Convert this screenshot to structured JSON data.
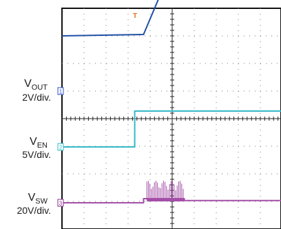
{
  "chart_data": {
    "type": "line",
    "title": "",
    "xlabel": "",
    "ylabel": "",
    "grid": true,
    "grid_divisions": {
      "x": 10,
      "y": 8
    },
    "trigger_marker": {
      "text": "T",
      "color": "#e8701a",
      "x_div": 3.6
    },
    "channels": [
      {
        "id": "1",
        "name": "V",
        "sub": "OUT",
        "scale": "2V/div.",
        "color": "#1f4fa6",
        "marker_color": "#2a50c8"
      },
      {
        "id": "2",
        "name": "V",
        "sub": "EN",
        "scale": "5V/div.",
        "color": "#34b8c8",
        "marker_color": "#34b8c8"
      },
      {
        "id": "3",
        "name": "V",
        "sub": "SW",
        "scale": "20V/div.",
        "color": "#a44fa8",
        "marker_color": "#8a2f8e"
      }
    ],
    "series": [
      {
        "channel": "1",
        "x_div": [
          0,
          3.7,
          5.1,
          5.6,
          10
        ],
        "y_div": [
          2.0,
          2.05,
          4.7,
          5.1,
          5.1
        ]
      },
      {
        "channel": "2",
        "x_div": [
          0,
          3.3,
          3.3,
          10
        ],
        "y_div": [
          0,
          0,
          1.3,
          1.3
        ]
      },
      {
        "channel": "3",
        "x_div": [
          0,
          3.7,
          3.7,
          5.55,
          5.55,
          10
        ],
        "y_div": [
          0,
          0,
          0.15,
          0.15,
          0.08,
          0.08
        ]
      }
    ],
    "burst": {
      "channel": "3",
      "x_div": [
        3.85,
        5.55
      ],
      "peak_div": 0.8
    }
  }
}
